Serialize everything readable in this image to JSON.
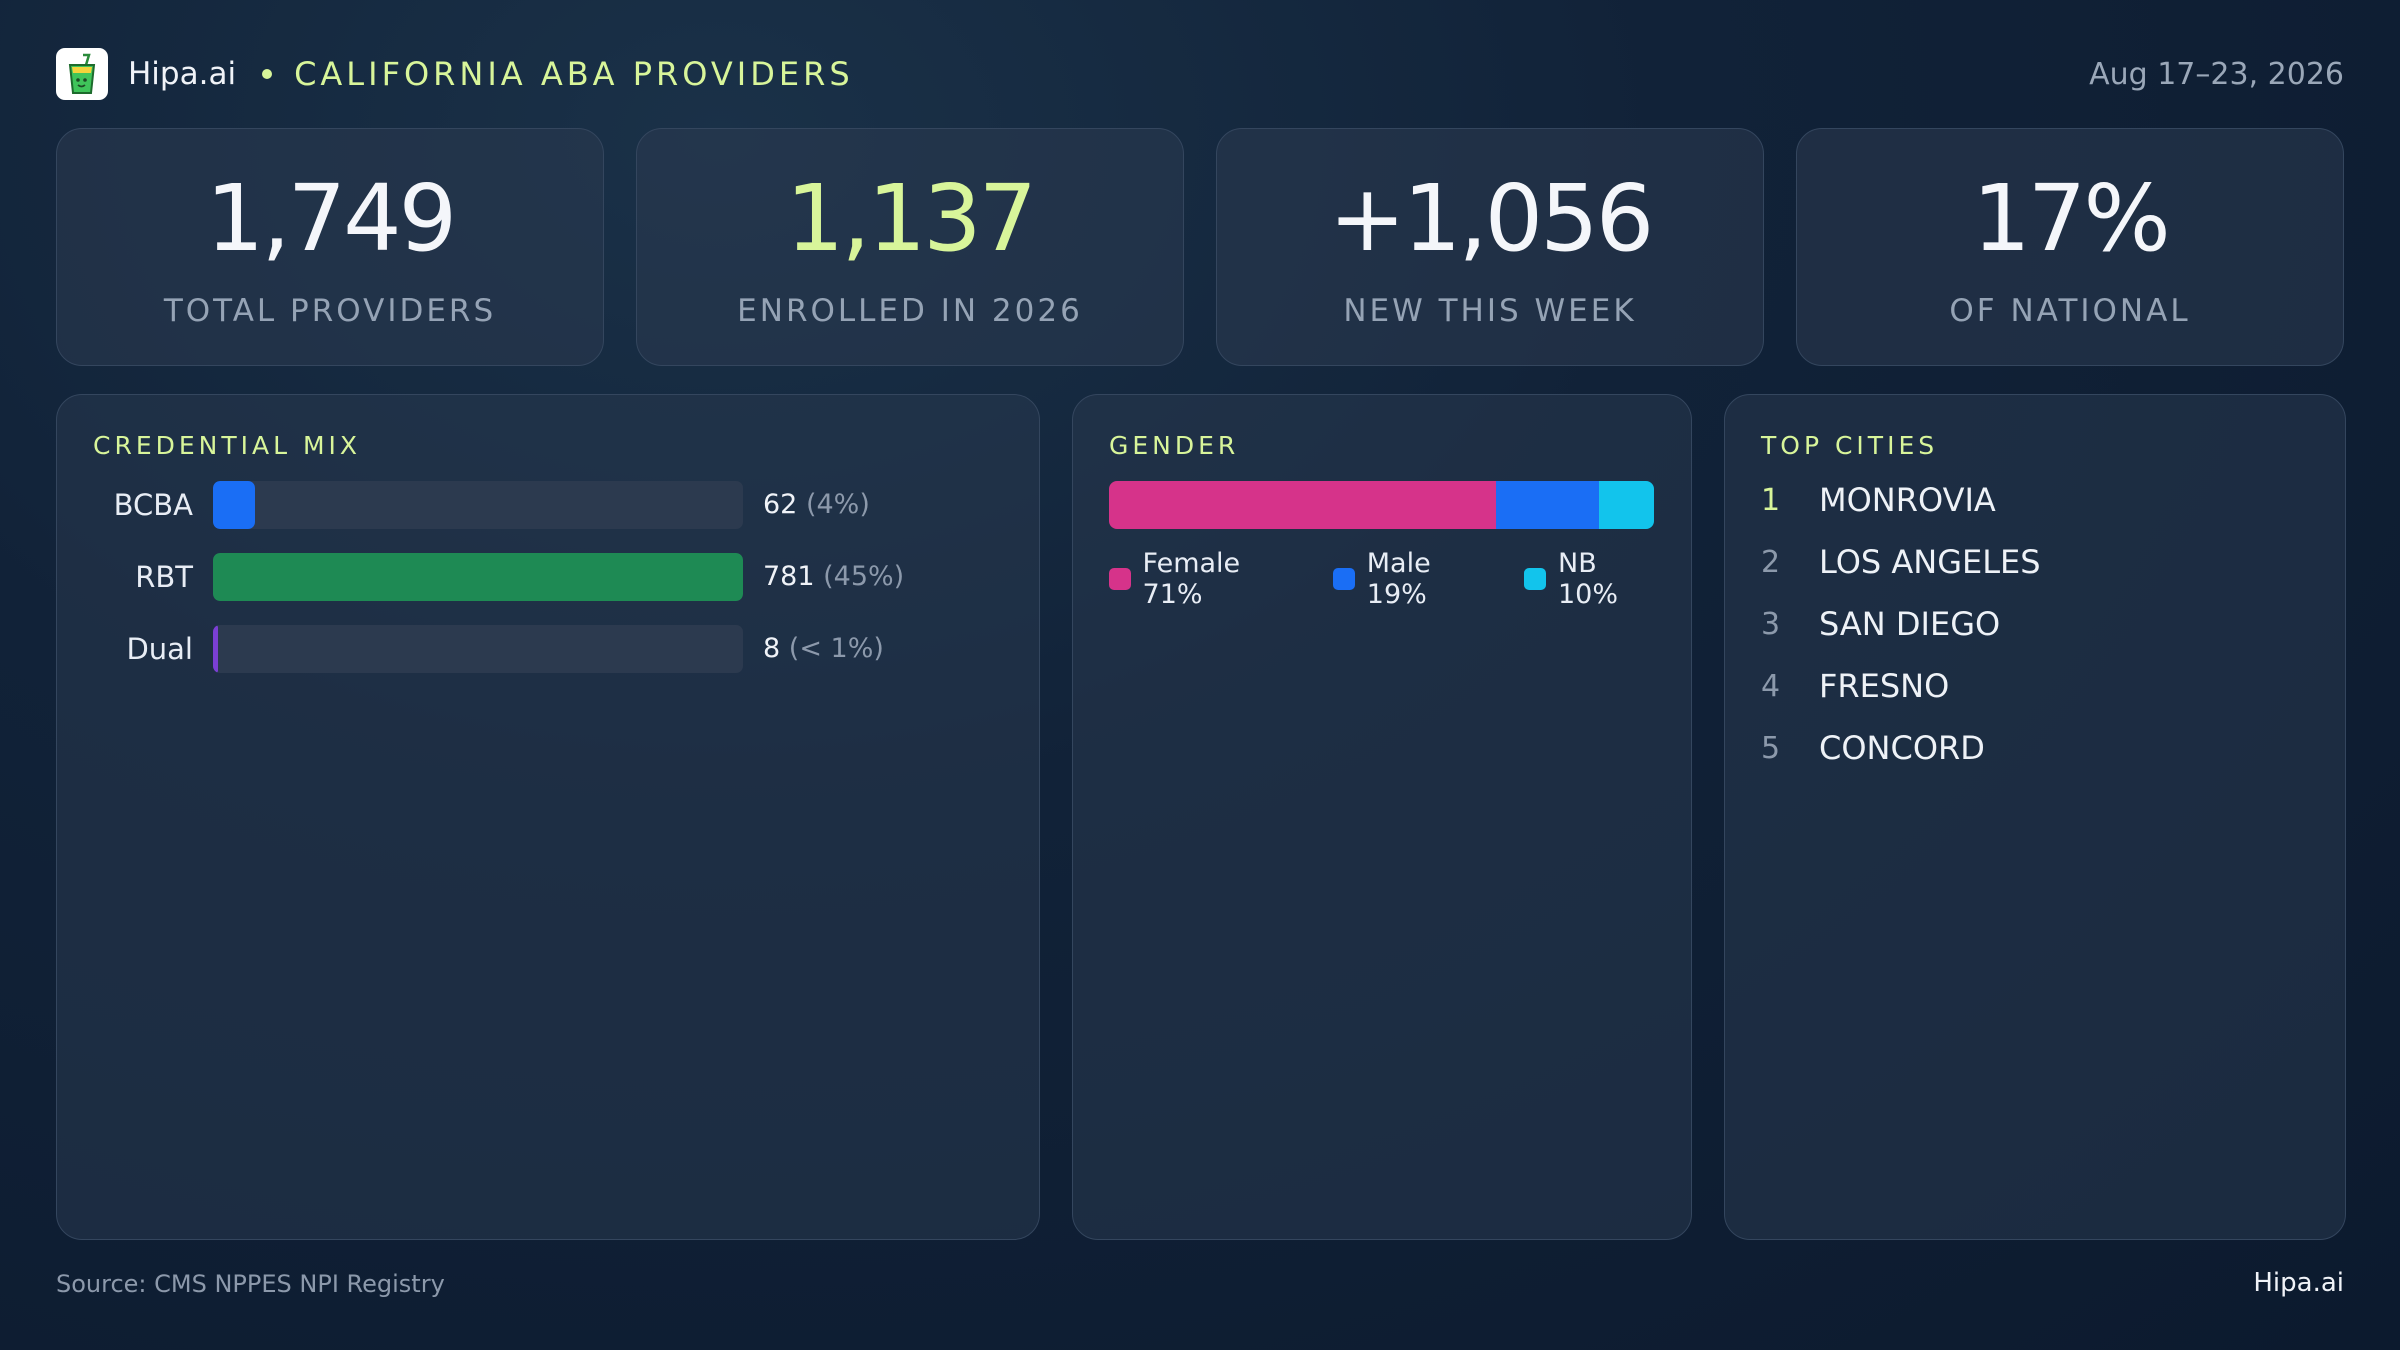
{
  "header": {
    "brand": "Hipa.ai",
    "region": "CALIFORNIA ABA PROVIDERS",
    "date_range": "Aug 17–23, 2026"
  },
  "stats": [
    {
      "value": "1,749",
      "label": "TOTAL PROVIDERS"
    },
    {
      "value": "1,137",
      "label": "ENROLLED IN 2026"
    },
    {
      "value": "+1,056",
      "label": "NEW THIS WEEK"
    },
    {
      "value": "17%",
      "label": "OF NATIONAL"
    }
  ],
  "chart_data": [
    {
      "type": "bar",
      "title": "CREDENTIAL MIX",
      "categories": [
        "BCBA",
        "RBT",
        "Dual"
      ],
      "values": [
        62,
        781,
        8
      ],
      "value_labels": [
        "62",
        "781",
        "8"
      ],
      "pct_labels": [
        "(4%)",
        "(45%)",
        "(< 1%)"
      ],
      "fill_fractions": [
        0.079,
        1.0,
        0.01
      ],
      "colors": [
        "#1a6ef5",
        "#1e8a54",
        "#7b3fd4"
      ]
    },
    {
      "type": "bar",
      "stacked": true,
      "title": "GENDER",
      "categories": [
        "Female",
        "Male",
        "NB"
      ],
      "values": [
        71,
        19,
        10
      ],
      "legend_labels": [
        "Female 71%",
        "Male 19%",
        "NB 10%"
      ],
      "colors": [
        "#d6338a",
        "#1a6ef5",
        "#12c4ec"
      ]
    }
  ],
  "top_cities": {
    "title": "TOP CITIES",
    "items": [
      {
        "rank": "1",
        "name": "MONROVIA"
      },
      {
        "rank": "2",
        "name": "LOS ANGELES"
      },
      {
        "rank": "3",
        "name": "SAN DIEGO"
      },
      {
        "rank": "4",
        "name": "FRESNO"
      },
      {
        "rank": "5",
        "name": "CONCORD"
      }
    ]
  },
  "footer": {
    "source": "Source: CMS NPPES NPI Registry",
    "brand": "Hipa.ai"
  },
  "theme": {
    "accent": "#d8f59a",
    "background": "#0f2035"
  }
}
